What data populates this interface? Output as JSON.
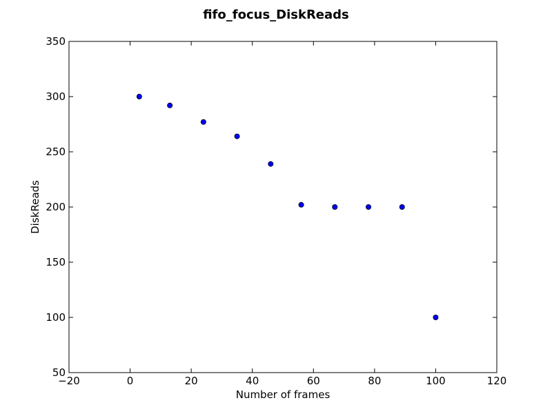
{
  "chart_data": {
    "type": "scatter",
    "title": "fifo_focus_DiskReads",
    "xlabel": "Number of frames",
    "ylabel": "DiskReads",
    "xlim": [
      -20,
      120
    ],
    "ylim": [
      50,
      350
    ],
    "xticks": [
      -20,
      0,
      20,
      40,
      60,
      80,
      100,
      120
    ],
    "yticks": [
      50,
      100,
      150,
      200,
      250,
      300,
      350
    ],
    "grid": false,
    "series": [
      {
        "x": [
          3,
          13,
          24,
          35,
          46,
          56,
          67,
          78,
          89,
          100
        ],
        "y": [
          300,
          292,
          277,
          264,
          239,
          202,
          200,
          200,
          200,
          100
        ],
        "color": "#0000ff"
      }
    ]
  }
}
